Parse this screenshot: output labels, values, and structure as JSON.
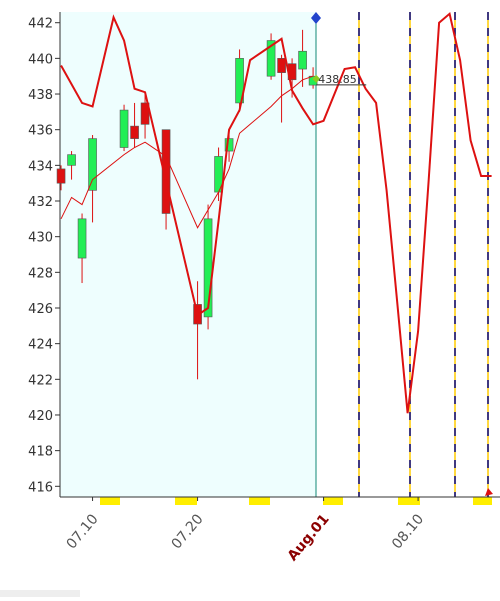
{
  "chart_data": {
    "type": "candlestick",
    "x": [
      7,
      8,
      9,
      10,
      13,
      14,
      15,
      17,
      20,
      21,
      22,
      23,
      24,
      27,
      28,
      29,
      30,
      31
    ],
    "open": [
      433.8,
      434.0,
      428.8,
      432.6,
      435.0,
      436.2,
      437.5,
      436.0,
      426.2,
      425.5,
      432.5,
      434.8,
      437.5,
      439.0,
      440.0,
      439.7,
      439.4,
      438.5
    ],
    "high": [
      434.0,
      434.8,
      431.3,
      435.7,
      437.4,
      437.5,
      438.0,
      436.0,
      427.5,
      431.8,
      435.0,
      436.0,
      440.5,
      441.4,
      440.2,
      440.0,
      441.6,
      439.5
    ],
    "low": [
      432.6,
      433.2,
      427.4,
      430.8,
      434.8,
      435.0,
      435.5,
      430.4,
      422.0,
      424.8,
      432.0,
      434.2,
      437.0,
      438.8,
      436.4,
      437.8,
      438.4,
      438.3
    ],
    "close": [
      433.0,
      434.6,
      431.0,
      435.5,
      437.1,
      435.5,
      436.3,
      431.3,
      425.1,
      431.0,
      434.5,
      435.5,
      440.0,
      441.0,
      439.2,
      438.8,
      440.4,
      439.0
    ],
    "up_color": "#22ee55",
    "down_color": "#dd1111",
    "overlays": [
      {
        "type": "line",
        "color": "#dd1111",
        "x": [
          7,
          8,
          9,
          10,
          13,
          14,
          15,
          17,
          20,
          21,
          22,
          23,
          24,
          27,
          28,
          29,
          30,
          31
        ],
        "values": [
          431.0,
          432.2,
          431.8,
          433.2,
          434.6,
          435.0,
          435.3,
          434.5,
          430.5,
          431.5,
          432.5,
          433.8,
          435.8,
          437.3,
          437.9,
          438.3,
          438.8,
          439.0
        ]
      },
      {
        "type": "line",
        "color": "#dd1111",
        "x": [
          7,
          9,
          10,
          12,
          13,
          14,
          15,
          17,
          20,
          21,
          22,
          23,
          24,
          25,
          27,
          28,
          29,
          30,
          31,
          32,
          34,
          35,
          36,
          37,
          38,
          39,
          40,
          41,
          42,
          43,
          44,
          45,
          46,
          47,
          48
        ],
        "values": [
          439.6,
          437.5,
          437.3,
          442.3,
          441.0,
          438.3,
          438.1,
          433.1,
          425.6,
          426.0,
          430.9,
          436.0,
          437.1,
          439.9,
          440.7,
          441.1,
          438.2,
          437.2,
          436.3,
          436.5,
          439.4,
          439.5,
          438.3,
          437.5,
          432.6,
          426.4,
          420.1,
          424.7,
          433.1,
          442.0,
          442.5,
          439.9,
          435.4,
          433.4,
          433.4
        ]
      }
    ],
    "annotation": {
      "label": "438.85",
      "x": 31.3,
      "value": 438.85
    },
    "xlim": [
      6.9,
      48.8
    ],
    "ylim": [
      415.4,
      442.6
    ],
    "yticks": [
      416,
      418,
      420,
      422,
      424,
      426,
      428,
      430,
      432,
      434,
      436,
      438,
      440,
      442
    ],
    "xticks": [
      {
        "value": 10,
        "label": "07.10"
      },
      {
        "value": 20,
        "label": "07.20"
      },
      {
        "value": 32,
        "label": "Aug.01"
      },
      {
        "value": 41,
        "label": "08.10"
      }
    ],
    "xtick_colors": [
      "#555555",
      "#555555",
      "#8b0000",
      "#555555"
    ]
  }
}
